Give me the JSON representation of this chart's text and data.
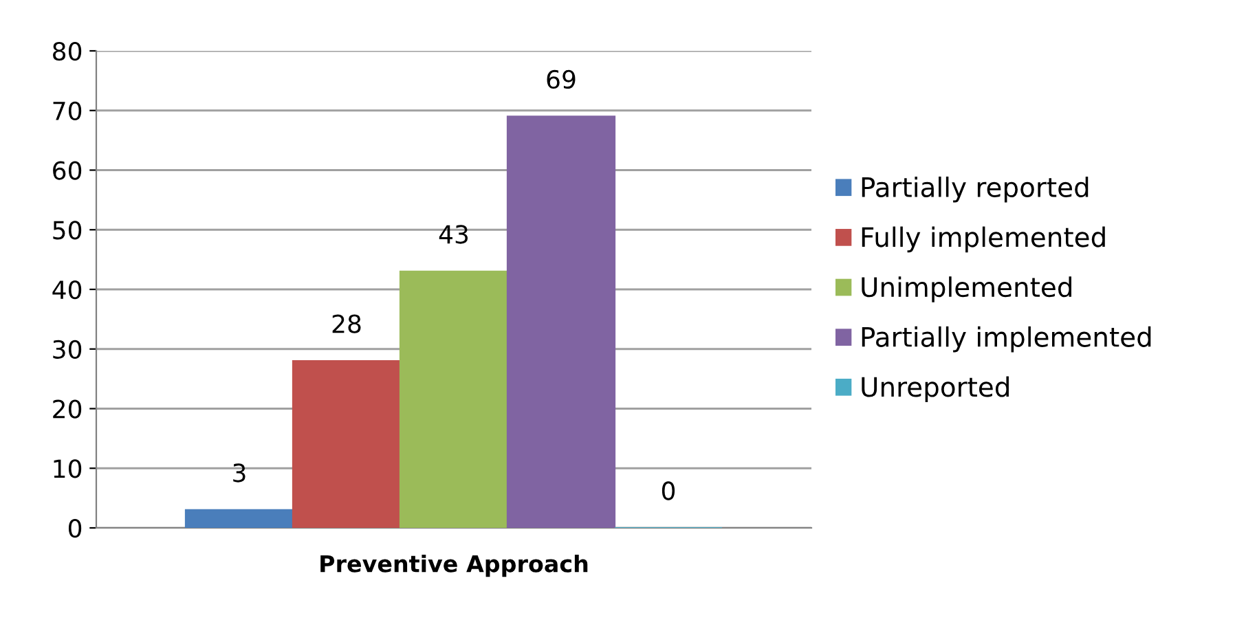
{
  "chart_data": {
    "type": "bar",
    "categories": [
      "Preventive Approach"
    ],
    "series": [
      {
        "name": "Partially reported",
        "color": "#4a7ebb",
        "values": [
          3
        ]
      },
      {
        "name": "Fully implemented",
        "color": "#c0504d",
        "values": [
          28
        ]
      },
      {
        "name": "Unimplemented",
        "color": "#9bbb59",
        "values": [
          43
        ]
      },
      {
        "name": "Partially implemented",
        "color": "#8064a2",
        "values": [
          69
        ]
      },
      {
        "name": "Unreported",
        "color": "#4bacc6",
        "values": [
          0
        ]
      }
    ],
    "ylim": [
      0,
      80
    ],
    "yticks": [
      0,
      10,
      20,
      30,
      40,
      50,
      60,
      70,
      80
    ],
    "grid": "y",
    "legend": "right",
    "data_labels": true
  }
}
